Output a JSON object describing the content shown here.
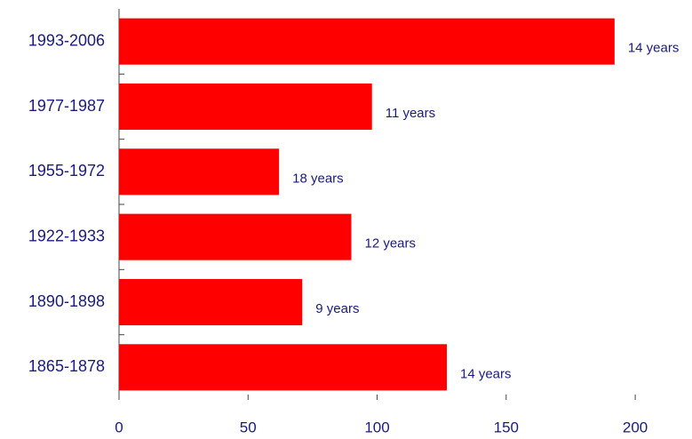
{
  "chart_data": {
    "type": "hbar",
    "categories": [
      "1993-2006",
      "1977-1987",
      "1955-1972",
      "1922-1933",
      "1890-1898",
      "1865-1878"
    ],
    "values": [
      192,
      98,
      62,
      90,
      71,
      127
    ],
    "annotations": [
      "14 years",
      "11 years",
      "18 years",
      "12 years",
      "9 years",
      "14 years"
    ],
    "color": "#ff0000",
    "xlim": [
      0,
      222
    ],
    "xticks": [
      0,
      50,
      100,
      150,
      200
    ]
  }
}
